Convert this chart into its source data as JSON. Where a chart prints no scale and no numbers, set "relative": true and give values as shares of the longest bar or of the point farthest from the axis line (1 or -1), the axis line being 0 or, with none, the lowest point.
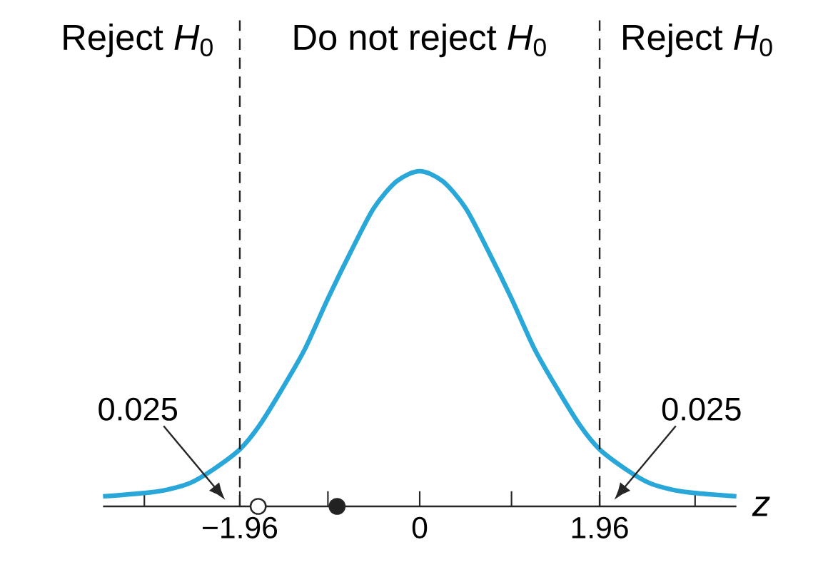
{
  "chart_data": {
    "type": "line",
    "relative": true,
    "xlabel": "z",
    "xlim": [
      -3.45,
      3.45
    ],
    "xticks": [
      {
        "value": -3,
        "label": null
      },
      {
        "value": -1.96,
        "label": "−1.96"
      },
      {
        "value": -1,
        "label": null
      },
      0,
      {
        "value": 1,
        "label": null
      },
      1.96,
      {
        "value": 3,
        "label": null
      }
    ],
    "series": [
      {
        "color": "#2aa7d9",
        "x": [
          -3.45,
          -3,
          -2.75,
          -2.5,
          -2.25,
          -1.96,
          -1.75,
          -1.5,
          -1.25,
          -1,
          -0.75,
          -0.5,
          -0.25,
          0,
          0.25,
          0.5,
          0.75,
          1,
          1.25,
          1.5,
          1.75,
          1.96,
          2.25,
          2.5,
          2.75,
          3,
          3.45
        ],
        "values": [
          0.03,
          0.04,
          0.05,
          0.07,
          0.11,
          0.17,
          0.24,
          0.35,
          0.47,
          0.62,
          0.76,
          0.89,
          0.97,
          1,
          0.97,
          0.89,
          0.76,
          0.62,
          0.47,
          0.35,
          0.24,
          0.17,
          0.11,
          0.07,
          0.05,
          0.04,
          0.03
        ]
      },
      {
        "type": "scatter",
        "marker": "circle",
        "color": "#ffffff",
        "x": [
          -1.76
        ],
        "values": [
          0
        ]
      },
      {
        "type": "scatter",
        "marker": "circle",
        "color": "#222222",
        "x": [
          -0.9
        ],
        "values": [
          0
        ]
      }
    ],
    "ref_lines": [
      {
        "axis": "x",
        "value": -1.96,
        "line_style": "dashed",
        "color": "#222222"
      },
      {
        "axis": "x",
        "value": 1.96,
        "line_style": "dashed",
        "color": "#222222"
      }
    ],
    "annotations": [
      "Reject *H*$_{0}$",
      "Do not reject *H*$_{0}$",
      "Reject *H*$_{0}$",
      "0.025",
      "0.025"
    ]
  }
}
